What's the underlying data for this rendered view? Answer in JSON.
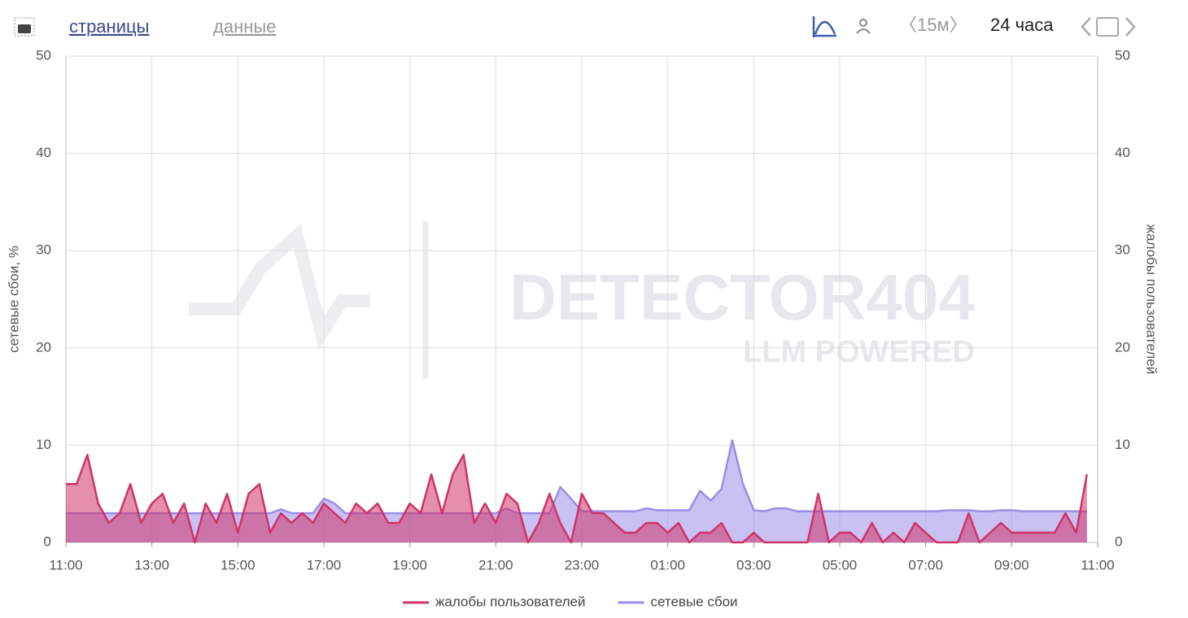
{
  "header": {
    "tabs": [
      "страницы",
      "данные"
    ],
    "interval": "〈15м〉",
    "range": "24 часа"
  },
  "watermark": {
    "title": "DETECTOR404",
    "subtitle": "LLM POWERED"
  },
  "chart_data": {
    "type": "area",
    "y_label": "сетевые сбои, %",
    "y2_label": "жалобы пользователей",
    "categories": [
      "11:00",
      null,
      null,
      null,
      null,
      null,
      null,
      null,
      "13:00",
      null,
      null,
      null,
      null,
      null,
      null,
      null,
      "15:00",
      null,
      null,
      null,
      null,
      null,
      null,
      null,
      "17:00",
      null,
      null,
      null,
      null,
      null,
      null,
      null,
      "19:00",
      null,
      null,
      null,
      null,
      null,
      null,
      null,
      "21:00",
      null,
      null,
      null,
      null,
      null,
      null,
      null,
      "23:00",
      null,
      null,
      null,
      null,
      null,
      null,
      null,
      "01:00",
      null,
      null,
      null,
      null,
      null,
      null,
      null,
      "03:00",
      null,
      null,
      null,
      null,
      null,
      null,
      null,
      "05:00",
      null,
      null,
      null,
      null,
      null,
      null,
      null,
      "07:00",
      null,
      null,
      null,
      null,
      null,
      null,
      null,
      "09:00",
      null,
      null,
      null,
      null,
      null,
      null,
      null,
      "11:00"
    ],
    "series": [
      {
        "name": "сетевые сбои",
        "color": "#9b8ee6",
        "axis": "y",
        "values": [
          3,
          3,
          3,
          3,
          3,
          3,
          3,
          3,
          3,
          3,
          3,
          3,
          3,
          3,
          3,
          3,
          3,
          3,
          3,
          3,
          3.4,
          3,
          3,
          3,
          4.5,
          4,
          3,
          3,
          3,
          3,
          3,
          3,
          3,
          3,
          3,
          3,
          3,
          3,
          3,
          3,
          3,
          3.5,
          3,
          3,
          3,
          3,
          5.7,
          4.5,
          3.2,
          3.2,
          3.2,
          3.2,
          3.2,
          3.2,
          3.5,
          3.3,
          3.3,
          3.3,
          3.3,
          5.3,
          4.3,
          5.5,
          10.5,
          6,
          3.3,
          3.2,
          3.5,
          3.5,
          3.2,
          3.2,
          3.2,
          3.2,
          3.2,
          3.2,
          3.2,
          3.2,
          3.2,
          3.2,
          3.2,
          3.2,
          3.2,
          3.2,
          3.3,
          3.3,
          3.3,
          3.2,
          3.2,
          3.3,
          3.3,
          3.2,
          3.2,
          3.2,
          3.2,
          3.2,
          3.2,
          3.2,
          null
        ]
      },
      {
        "name": "жалобы пользователей",
        "color": "#d0336a",
        "axis": "y2",
        "values": [
          6,
          6,
          9,
          4,
          2,
          3,
          6,
          2,
          4,
          5,
          2,
          4,
          0,
          4,
          2,
          5,
          1,
          5,
          6,
          1,
          3,
          2,
          3,
          2,
          4,
          3,
          2,
          4,
          3,
          4,
          2,
          2,
          4,
          3,
          7,
          3,
          7,
          9,
          2,
          4,
          2,
          5,
          4,
          0,
          2,
          5,
          2,
          0,
          5,
          3,
          3,
          2,
          1,
          1,
          2,
          2,
          1,
          2,
          0,
          1,
          1,
          2,
          0,
          0,
          1,
          0,
          0,
          0,
          0,
          0,
          5,
          0,
          1,
          1,
          0,
          2,
          0,
          1,
          0,
          2,
          1,
          0,
          0,
          0,
          3,
          0,
          1,
          2,
          1,
          1,
          1,
          1,
          1,
          3,
          1,
          7,
          null
        ]
      }
    ],
    "ylim": [
      0,
      50
    ],
    "yticks": [
      0,
      10,
      20,
      30,
      40,
      50
    ],
    "y2lim": [
      0,
      50
    ],
    "y2ticks": [
      0,
      10,
      20,
      30,
      40,
      50
    ],
    "grid": true,
    "legend": "bottom"
  }
}
